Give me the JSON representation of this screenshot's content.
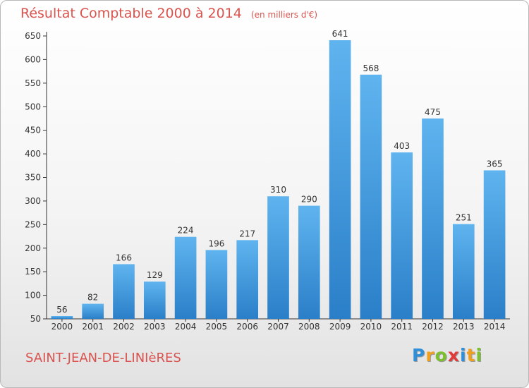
{
  "chart_data": {
    "type": "bar",
    "title": "Résultat Comptable 2000 à 2014",
    "unit_label": "(en milliers d'€)",
    "categories": [
      "2000",
      "2001",
      "2002",
      "2003",
      "2004",
      "2005",
      "2006",
      "2007",
      "2008",
      "2009",
      "2010",
      "2011",
      "2012",
      "2013",
      "2014"
    ],
    "values": [
      56,
      82,
      166,
      129,
      224,
      196,
      217,
      310,
      290,
      641,
      568,
      403,
      475,
      251,
      365
    ],
    "ylim": [
      50,
      650
    ],
    "yticks": [
      50,
      100,
      150,
      200,
      250,
      300,
      350,
      400,
      450,
      500,
      550,
      600,
      650
    ],
    "grid": false,
    "bar_color": "#3d9be0"
  },
  "footer": {
    "commune": "SAINT-JEAN-DE-LINIèRES",
    "logo_letters": [
      "P",
      "r",
      "o",
      "x",
      "i",
      "t",
      "i"
    ],
    "logo_colors": [
      "#2f8fd8",
      "#f0a020",
      "#7cbf2f",
      "#e03a3a",
      "#2f8fd8",
      "#f0a020",
      "#7cbf2f"
    ]
  }
}
